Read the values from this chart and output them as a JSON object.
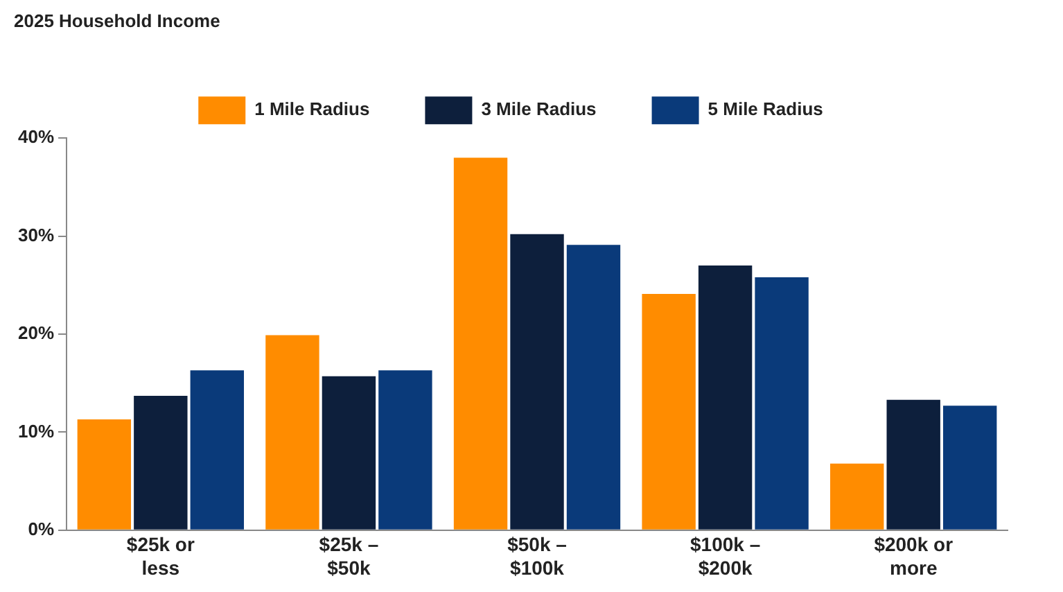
{
  "chart_data": {
    "type": "bar",
    "title": "2025 Household Income",
    "categories": [
      "$25k or less",
      "$25k – $50k",
      "$50k – $100k",
      "$100k – $200k",
      "$200k or more"
    ],
    "series": [
      {
        "name": "1 Mile Radius",
        "color": "#ff8c00",
        "values": [
          11.3,
          19.9,
          38,
          24.1,
          6.8
        ]
      },
      {
        "name": "3 Mile Radius",
        "color": "#0d1f3c",
        "values": [
          13.7,
          15.7,
          30.2,
          27,
          13.3
        ]
      },
      {
        "name": "5 Mile Radius",
        "color": "#0a3a7a",
        "values": [
          16.3,
          16.3,
          29.1,
          25.8,
          12.7
        ]
      }
    ],
    "ylim": [
      0,
      40
    ],
    "yticks": [
      {
        "value": 0,
        "label": "0%"
      },
      {
        "value": 10,
        "label": "10%"
      },
      {
        "value": 20,
        "label": "20%"
      },
      {
        "value": 30,
        "label": "30%"
      },
      {
        "value": 40,
        "label": "40%"
      }
    ],
    "grid": false,
    "legend": "top"
  }
}
